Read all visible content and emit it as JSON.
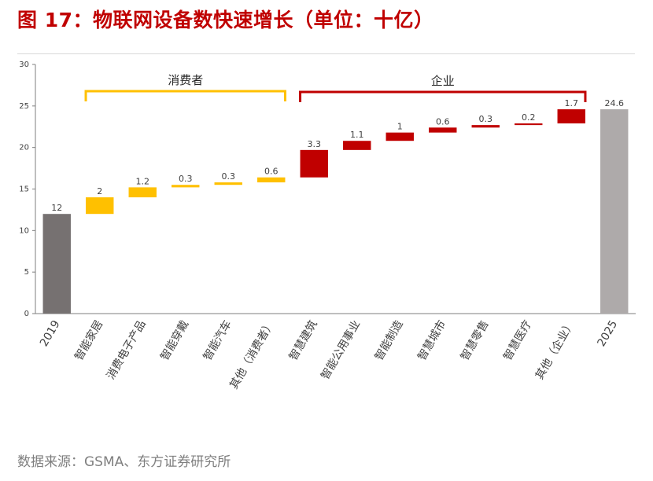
{
  "title": "图 17：物联网设备数快速增长（单位：十亿）",
  "source": "数据来源：GSMA、东方证券研究所",
  "colors": {
    "title": "#c00000",
    "total_2019": "#767171",
    "total_2025": "#aeaaaa",
    "consumer": "#ffc000",
    "enterprise": "#c00000",
    "axis": "#7f7f7f",
    "label": "#404040"
  },
  "chart_data": {
    "type": "bar",
    "subtype": "waterfall",
    "title": "",
    "xlabel": "",
    "ylabel": "",
    "ylim": [
      0,
      30
    ],
    "yticks": [
      0,
      5,
      10,
      15,
      20,
      25,
      30
    ],
    "grid": false,
    "categories": [
      "2019",
      "智能家居",
      "消费电子产品",
      "智能穿戴",
      "智能汽车",
      "其他（消费者）",
      "智慧建筑",
      "智能公用事业",
      "智能制造",
      "智慧城市",
      "智慧零售",
      "智慧医疗",
      "其他（企业）",
      "2025"
    ],
    "values": [
      12,
      2,
      1.2,
      0.3,
      0.3,
      0.6,
      3.3,
      1.1,
      1,
      0.6,
      0.3,
      0.2,
      1.7,
      24.6
    ],
    "value_labels": [
      "12",
      "2",
      "1.2",
      "0.3",
      "0.3",
      "0.6",
      "3.3",
      "1.1",
      "1",
      "0.6",
      "0.3",
      "0.2",
      "1.7",
      "24.6"
    ],
    "kinds": [
      "total",
      "consumer",
      "consumer",
      "consumer",
      "consumer",
      "consumer",
      "enterprise",
      "enterprise",
      "enterprise",
      "enterprise",
      "enterprise",
      "enterprise",
      "enterprise",
      "total"
    ],
    "groups": [
      {
        "label": "消费者",
        "from": 1,
        "to": 5,
        "kind": "consumer"
      },
      {
        "label": "企业",
        "from": 6,
        "to": 12,
        "kind": "enterprise"
      }
    ]
  }
}
